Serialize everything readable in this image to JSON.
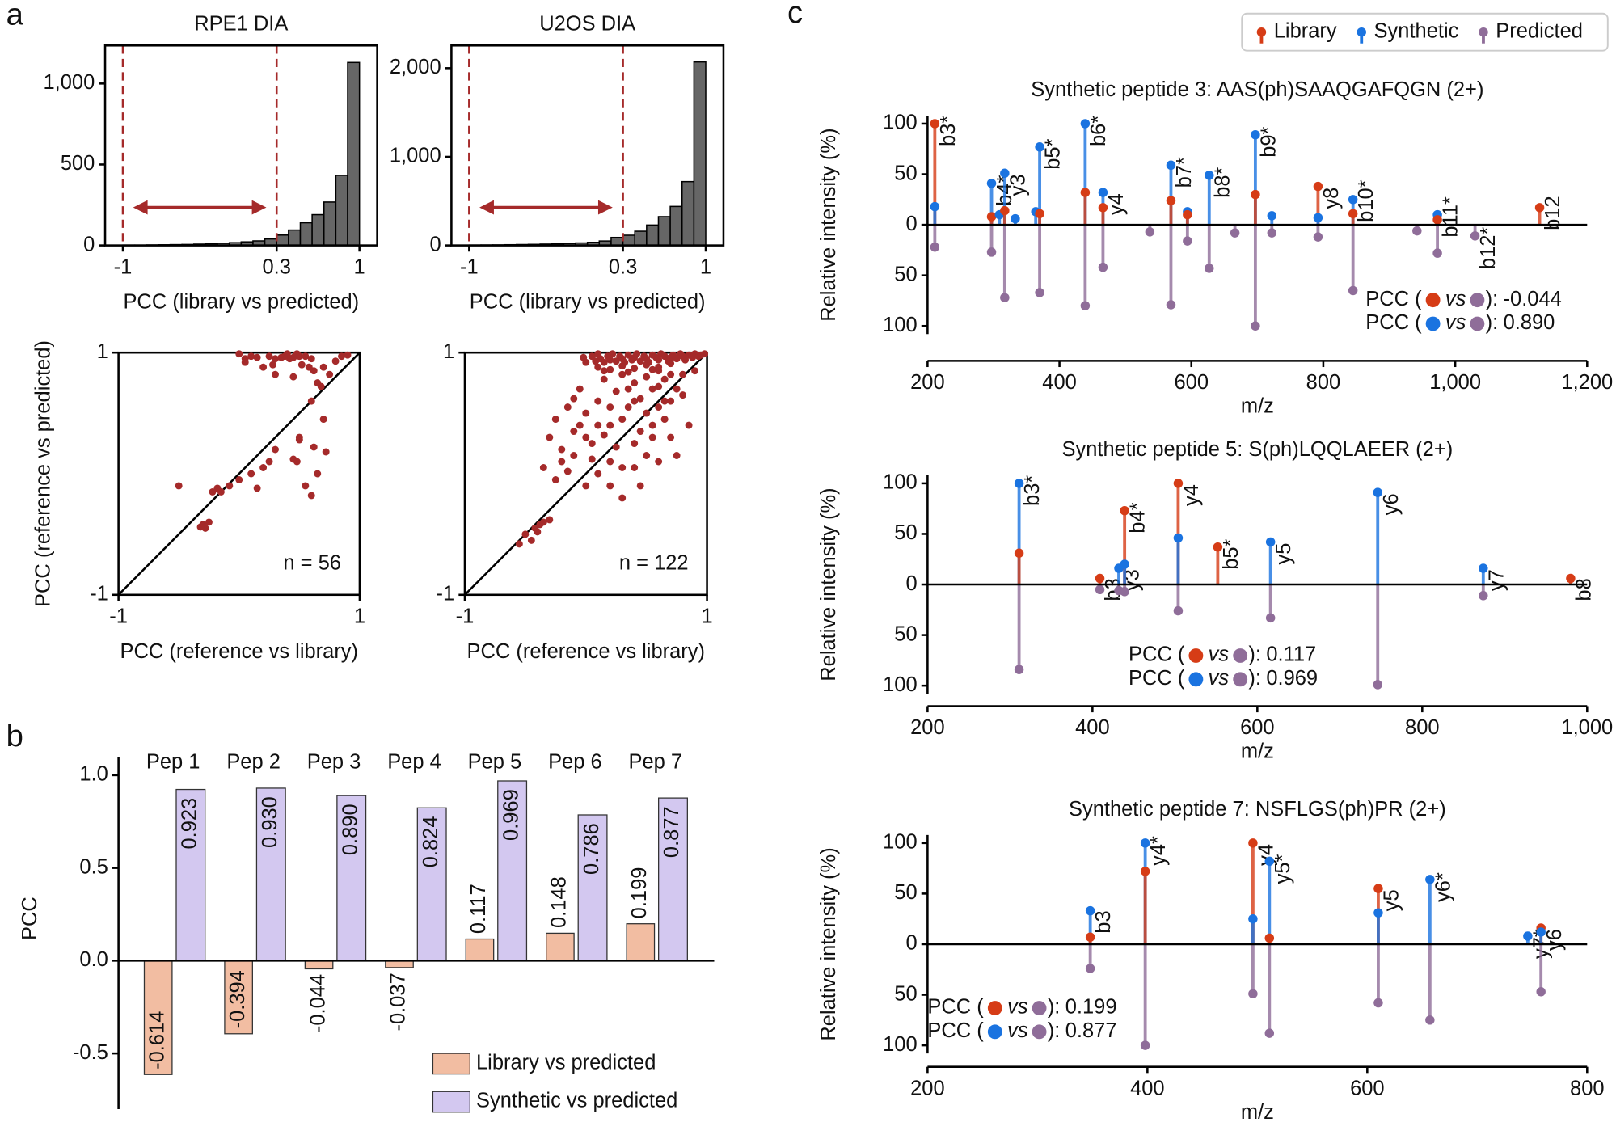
{
  "panels": [
    "a",
    "b",
    "c"
  ],
  "chart_data": [
    {
      "type": "histogram",
      "title": "RPE1 DIA",
      "xlabel": "PCC (library vs predicted)",
      "color": "#666666",
      "bins": [
        -1,
        -0.9,
        -0.8,
        -0.7,
        -0.6,
        -0.5,
        -0.4,
        -0.3,
        -0.2,
        -0.1,
        0,
        0.1,
        0.2,
        0.3,
        0.4,
        0.5,
        0.6,
        0.7,
        0.8,
        0.9,
        1
      ],
      "values": [
        2,
        2,
        3,
        4,
        5,
        6,
        8,
        10,
        13,
        17,
        22,
        28,
        40,
        64,
        95,
        140,
        190,
        268,
        433,
        1130
      ],
      "thresholds": [
        -1,
        0.3
      ],
      "threshold_color": "#a52a2a",
      "xlim": [
        -1.15,
        1.15
      ],
      "xticks": [
        -1,
        0.3,
        1
      ],
      "ylim": [
        0,
        1235
      ],
      "yticks": [
        0,
        500,
        {
          "value": 1000,
          "label": "1,000"
        }
      ]
    },
    {
      "type": "histogram",
      "title": "U2OS DIA",
      "xlabel": "PCC (library vs predicted)",
      "color": "#666666",
      "bins": [
        -1,
        -0.9,
        -0.8,
        -0.7,
        -0.6,
        -0.5,
        -0.4,
        -0.3,
        -0.2,
        -0.1,
        0,
        0.1,
        0.2,
        0.3,
        0.4,
        0.5,
        0.6,
        0.7,
        0.8,
        0.9,
        1
      ],
      "values": [
        4,
        5,
        6,
        8,
        10,
        12,
        15,
        18,
        22,
        28,
        35,
        50,
        90,
        115,
        160,
        230,
        325,
        440,
        720,
        2070
      ],
      "thresholds": [
        -1,
        0.3
      ],
      "threshold_color": "#a52a2a",
      "xlim": [
        -1.15,
        1.15
      ],
      "xticks": [
        -1,
        0.3,
        1
      ],
      "ylim": [
        0,
        2256
      ],
      "yticks": [
        0,
        {
          "value": 1000,
          "label": "1,000"
        },
        {
          "value": 2000,
          "label": "2,000"
        }
      ]
    },
    {
      "type": "scatter",
      "xlabel": "PCC (reference vs library)",
      "ylabel": "PCC (reference vs predicted)",
      "annotation": "n = 56",
      "color": "#a52a2a",
      "x": [
        0.0,
        0.05,
        0.1,
        0.15,
        0.2,
        0.25,
        0.28,
        0.3,
        0.35,
        0.38,
        0.4,
        0.42,
        0.45,
        0.48,
        0.5,
        0.52,
        0.55,
        0.58,
        0.6,
        0.62,
        0.65,
        0.68,
        0.7,
        0.75,
        0.8,
        0.85,
        0.9,
        0.3,
        0.45,
        0.6,
        0.7,
        0.5,
        0.62,
        0.72,
        0.48,
        0.55,
        0.25,
        0.2,
        0.1,
        0.0,
        -0.08,
        -0.18,
        -0.22,
        -0.5,
        -0.25,
        -0.3,
        -0.28,
        -0.32,
        0.6,
        0.65,
        0.5,
        0.3,
        0.45,
        0.15,
        0.05,
        -0.15
      ],
      "y": [
        0.99,
        0.95,
        0.97,
        0.96,
        0.88,
        0.97,
        0.9,
        0.95,
        0.96,
        0.97,
        0.99,
        0.95,
        0.96,
        0.99,
        0.97,
        0.9,
        0.97,
        0.88,
        0.95,
        0.85,
        0.75,
        0.72,
        0.88,
        0.82,
        0.93,
        0.97,
        0.98,
        0.82,
        0.8,
        0.6,
        0.45,
        0.28,
        0.22,
        0.18,
        0.1,
        -0.1,
        0.1,
        0.05,
        0.0,
        -0.05,
        -0.1,
        -0.12,
        -0.15,
        -0.1,
        -0.4,
        -0.42,
        -0.45,
        -0.44,
        -0.18,
        0.0,
        0.3,
        0.2,
        0.12,
        -0.12,
        0.92,
        -0.15
      ],
      "xlim": [
        -1,
        1
      ],
      "xticks": [
        -1,
        1
      ],
      "ylim": [
        -1,
        1
      ],
      "yticks": [
        -1,
        1
      ]
    },
    {
      "type": "scatter",
      "xlabel": "PCC (reference vs library)",
      "annotation": "n = 122",
      "color": "#a52a2a",
      "x": [
        -0.02,
        0.0,
        0.05,
        0.08,
        0.1,
        0.12,
        0.15,
        0.18,
        0.2,
        0.22,
        0.25,
        0.28,
        0.3,
        0.32,
        0.35,
        0.38,
        0.4,
        0.42,
        0.45,
        0.48,
        0.5,
        0.52,
        0.55,
        0.58,
        0.6,
        0.62,
        0.65,
        0.68,
        0.7,
        0.72,
        0.75,
        0.78,
        0.8,
        0.82,
        0.85,
        0.88,
        0.9,
        0.93,
        0.95,
        0.98,
        0.1,
        0.2,
        0.3,
        0.4,
        0.5,
        0.6,
        0.7,
        0.15,
        0.35,
        0.55,
        -0.3,
        -0.25,
        -0.2,
        -0.15,
        -0.1,
        -0.05,
        0.0,
        0.05,
        0.1,
        0.15,
        0.2,
        0.25,
        0.3,
        0.35,
        0.4,
        0.45,
        0.5,
        0.55,
        0.6,
        0.65,
        -0.2,
        -0.1,
        0.0,
        0.1,
        0.2,
        0.3,
        0.4,
        0.5,
        0.6,
        0.7,
        -0.35,
        -0.15,
        0.05,
        0.25,
        0.45,
        0.65,
        -0.05,
        0.15,
        0.35,
        0.55,
        -0.25,
        0.0,
        0.2,
        0.4,
        0.6,
        0.75,
        0.8,
        0.3,
        0.1,
        -0.1,
        0.6,
        0.7,
        0.75,
        0.85,
        0.5,
        0.45,
        0.3,
        0.2,
        0.65,
        0.8,
        -0.5,
        -0.45,
        -0.42,
        -0.4,
        -0.38,
        -0.35,
        -0.3,
        -0.55,
        0.4,
        0.55,
        0.9,
        0.7
      ],
      "y": [
        0.96,
        0.92,
        0.97,
        0.93,
        0.99,
        0.95,
        0.92,
        0.97,
        0.94,
        0.99,
        0.93,
        0.97,
        0.95,
        0.92,
        0.98,
        0.94,
        0.96,
        0.99,
        0.93,
        0.97,
        0.95,
        0.92,
        0.98,
        0.96,
        0.94,
        0.99,
        0.97,
        0.93,
        0.96,
        0.98,
        0.95,
        0.99,
        0.97,
        0.94,
        0.98,
        0.96,
        0.99,
        0.97,
        0.98,
        0.99,
        0.88,
        0.86,
        0.89,
        0.87,
        0.9,
        0.88,
        0.91,
        0.85,
        0.84,
        0.86,
        0.3,
        0.45,
        0.2,
        0.55,
        0.35,
        0.7,
        0.5,
        0.25,
        0.6,
        0.78,
        0.4,
        0.68,
        0.82,
        0.55,
        0.75,
        0.62,
        0.8,
        0.7,
        0.85,
        0.78,
        0.1,
        0.15,
        0.3,
        0.4,
        0.55,
        0.45,
        0.6,
        0.5,
        0.72,
        0.82,
        0.05,
        0.02,
        0.12,
        0.22,
        0.35,
        0.6,
        0.4,
        0.32,
        0.7,
        0.4,
        -0.05,
        -0.1,
        0.1,
        0.25,
        0.55,
        0.7,
        0.82,
        0.05,
        0.0,
        0.62,
        0.1,
        0.3,
        0.15,
        0.4,
        0.15,
        -0.1,
        -0.2,
        -0.1,
        0.45,
        0.65,
        -0.5,
        -0.55,
        -0.45,
        -0.48,
        -0.42,
        -0.4,
        -0.38,
        -0.58,
        0.05,
        0.3,
        0.85,
        0.6
      ],
      "xlim": [
        -1,
        1
      ],
      "xticks": [
        -1,
        1
      ],
      "ylim": [
        -1,
        1
      ],
      "yticks": [
        -1,
        1
      ]
    },
    {
      "type": "bar",
      "ylabel": "PCC",
      "categories": [
        "Pep 1",
        "Pep 2",
        "Pep 3",
        "Pep 4",
        "Pep 5",
        "Pep 6",
        "Pep 7"
      ],
      "ylim": [
        -0.8,
        1.1
      ],
      "yticks": [
        -0.5,
        {
          "value": 0,
          "label": "0.0"
        },
        0.5,
        {
          "value": 1,
          "label": "1.0"
        }
      ],
      "series": [
        {
          "name": "Library vs predicted",
          "color": "#f2bda2",
          "values": [
            -0.614,
            -0.394,
            -0.044,
            -0.037,
            0.117,
            0.148,
            0.199
          ],
          "value_labels": [
            "-0.614",
            "-0.394",
            "-0.044",
            "-0.037",
            "0.117",
            "0.148",
            "0.199"
          ]
        },
        {
          "name": "Synthetic vs predicted",
          "color": "#d3c8f0",
          "values": [
            0.923,
            0.93,
            0.89,
            0.824,
            0.969,
            0.786,
            0.877
          ],
          "value_labels": [
            "0.923",
            "0.930",
            "0.890",
            "0.824",
            "0.969",
            "0.786",
            "0.877"
          ]
        }
      ]
    },
    {
      "type": "spectrum",
      "title": "Synthetic peptide 3: AAS(ph)SAAQGAFQGN (2+)",
      "xlabel": "m/z",
      "ylabel": "Relative intensity (%)",
      "x": [
        211,
        297,
        309,
        317,
        333,
        364,
        370,
        439,
        466,
        537,
        569,
        594,
        627,
        666,
        697,
        722,
        792,
        845,
        942,
        973,
        1030,
        1128
      ],
      "ion_labels": [
        "b3*",
        "b4*",
        null,
        "y3",
        null,
        null,
        "b5*",
        "b6*",
        "y4",
        null,
        "b7*",
        null,
        "b8*",
        null,
        "b9*",
        null,
        "y8",
        "b10*",
        null,
        "b11*",
        "b12*",
        "b12"
      ],
      "series": [
        {
          "name": "Library",
          "color": "#d63c16",
          "values": [
            100,
            8,
            null,
            14,
            null,
            null,
            11,
            32,
            17,
            null,
            24,
            10,
            null,
            null,
            30,
            null,
            38,
            11,
            null,
            5,
            null,
            17
          ]
        },
        {
          "name": "Synthetic",
          "color": "#1a73e0",
          "values": [
            18,
            41,
            10,
            51,
            6,
            13,
            77,
            100,
            32,
            null,
            59,
            13,
            49,
            null,
            89,
            9,
            7,
            25,
            null,
            10,
            null,
            null
          ]
        },
        {
          "name": "Predicted",
          "color": "#8f6d99",
          "values": [
            -22,
            -27,
            null,
            -72,
            null,
            null,
            -67,
            -80,
            -42,
            -7,
            -79,
            -16,
            -43,
            -8,
            -100,
            -8,
            -12,
            -65,
            -6,
            -28,
            -11,
            null
          ]
        }
      ],
      "pcc_template": [
        "PCC (",
        "vs",
        "):"
      ],
      "pcc": [
        -0.044,
        {
          "value": 0.89,
          "label": "0.890"
        }
      ],
      "xlim": [
        200,
        1200
      ],
      "xticks": [
        200,
        400,
        600,
        800,
        {
          "value": 1000,
          "label": "1,000"
        },
        {
          "value": 1200,
          "label": "1,200"
        }
      ],
      "ylim": [
        -108,
        108
      ],
      "yticks": [
        {
          "value": 100,
          "label": "100"
        },
        50,
        0,
        {
          "value": -50,
          "label": "50"
        },
        {
          "value": -100,
          "label": "100"
        }
      ]
    },
    {
      "type": "spectrum",
      "title": "Synthetic peptide 5: S(ph)LQQLAEER (2+)",
      "xlabel": "m/z",
      "ylabel": "Relative intensity (%)",
      "x": [
        311,
        409,
        432,
        439,
        504,
        552,
        616,
        746,
        874,
        980
      ],
      "ion_labels": [
        "b3*",
        "b3",
        "y3",
        "b4*",
        "y4",
        "b5*",
        "y5",
        "y6",
        "y7",
        "b8"
      ],
      "series": [
        {
          "color": "#d63c16",
          "values": [
            31,
            6,
            null,
            73,
            100,
            37,
            null,
            null,
            null,
            6
          ]
        },
        {
          "color": "#1a73e0",
          "values": [
            100,
            null,
            16,
            20,
            46,
            null,
            42,
            91,
            16,
            null
          ]
        },
        {
          "color": "#8f6d99",
          "values": [
            -84,
            -5,
            -6,
            -7,
            -26,
            null,
            -33,
            -99,
            -11,
            null
          ]
        }
      ],
      "pcc_template": [
        "PCC (",
        "vs",
        "):"
      ],
      "pcc": [
        0.117,
        0.969
      ],
      "xlim": [
        200,
        1000
      ],
      "xticks": [
        200,
        400,
        600,
        800,
        {
          "value": 1000,
          "label": "1,000"
        }
      ],
      "ylim": [
        -108,
        108
      ],
      "yticks": [
        100,
        50,
        0,
        {
          "value": -50,
          "label": "50"
        },
        {
          "value": -100,
          "label": "100"
        }
      ]
    },
    {
      "type": "spectrum",
      "title": "Synthetic peptide 7: NSFLGS(ph)PR (2+)",
      "xlabel": "m/z",
      "ylabel": "Relative intensity (%)",
      "x": [
        348,
        398,
        496,
        511,
        610,
        657,
        746,
        758
      ],
      "ion_labels": [
        "b3",
        "y4*",
        "y4",
        "y5*",
        "y5",
        "y6*",
        "y7*",
        "y6"
      ],
      "series": [
        {
          "color": "#d63c16",
          "values": [
            7,
            72,
            100,
            6,
            55,
            null,
            null,
            16
          ]
        },
        {
          "color": "#1a73e0",
          "values": [
            33,
            100,
            25,
            82,
            31,
            64,
            8,
            12
          ]
        },
        {
          "color": "#8f6d99",
          "values": [
            -24,
            -100,
            -49,
            -88,
            -58,
            -75,
            null,
            -47
          ]
        }
      ],
      "pcc_template": [
        "PCC (",
        "vs",
        "):"
      ],
      "pcc": [
        0.199,
        0.877
      ],
      "xlim": [
        200,
        800
      ],
      "xticks": [
        200,
        400,
        600,
        800
      ],
      "ylim": [
        -108,
        108
      ],
      "yticks": [
        100,
        50,
        0,
        {
          "value": -50,
          "label": "50"
        },
        {
          "value": -100,
          "label": "100"
        }
      ]
    }
  ]
}
